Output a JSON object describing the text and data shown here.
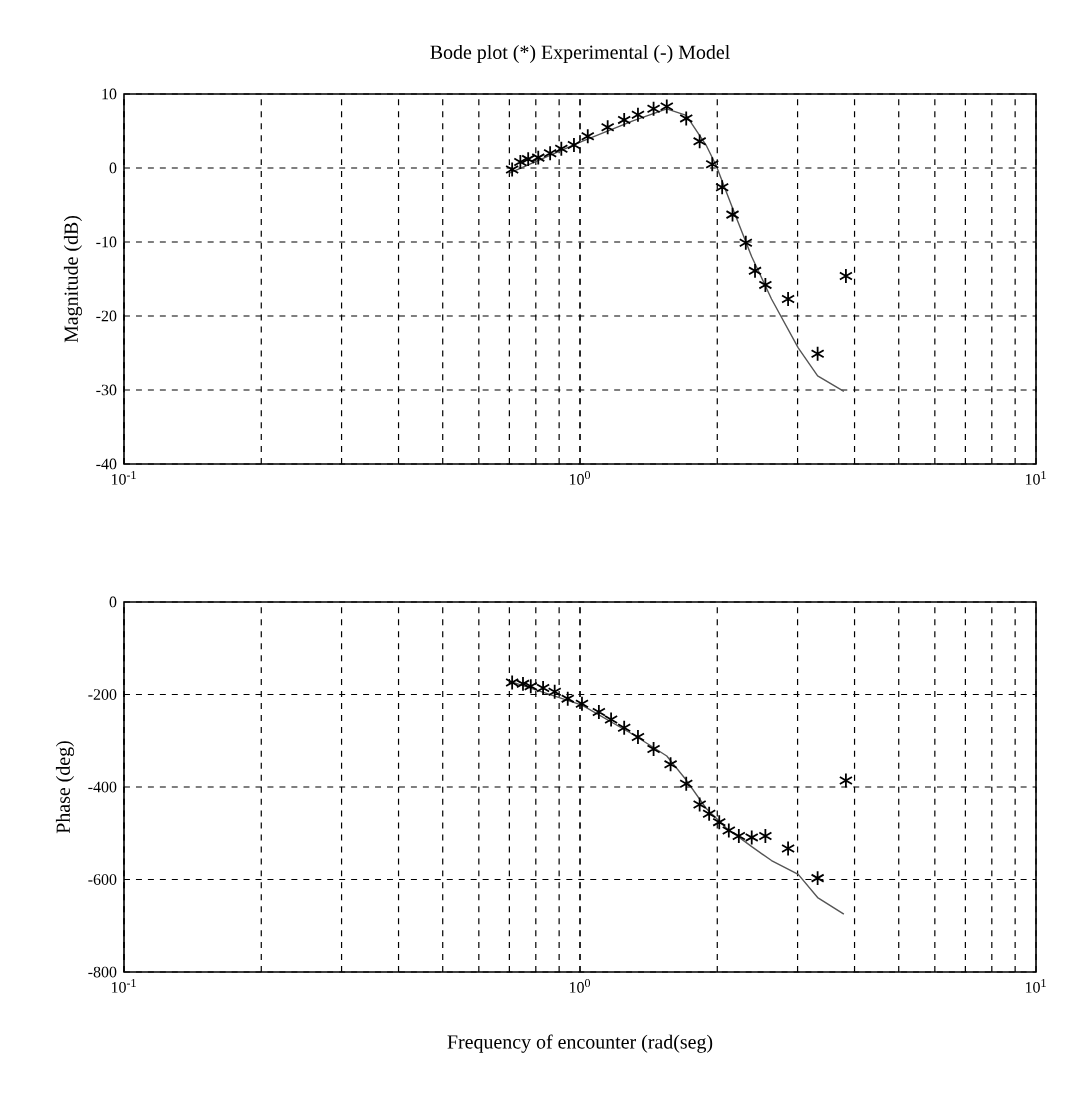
{
  "chart_data": [
    {
      "type": "scatter",
      "title": "Bode plot (*) Experimental (-) Model",
      "ylabel": "Magnitude (dB)",
      "log": "x",
      "grid": true,
      "marker": "cross",
      "xlim": [
        0.1,
        10
      ],
      "xticks": [
        {
          "value": 0.1,
          "label": "10$^{-1}$"
        },
        {
          "value": 1,
          "label": "10$^{0}$"
        },
        {
          "value": 10,
          "label": "10$^{1}$"
        }
      ],
      "ylim": [
        -40,
        10
      ],
      "yticks": [
        -40,
        -30,
        -20,
        -10,
        0,
        10
      ],
      "series": [
        {
          "color": "#000000",
          "x": [
            0.71,
            0.74,
            0.77,
            0.81,
            0.86,
            0.91,
            0.97,
            1.04,
            1.15,
            1.25,
            1.34,
            1.45,
            1.55,
            1.71,
            1.83,
            1.95,
            2.05,
            2.16,
            2.31,
            2.42,
            2.55,
            2.86,
            3.32,
            3.83
          ],
          "values": [
            -0.2,
            0.8,
            1.2,
            1.4,
            2.0,
            2.6,
            3.1,
            4.3,
            5.5,
            6.5,
            7.2,
            8.0,
            8.3,
            6.7,
            3.6,
            0.5,
            -2.6,
            -6.3,
            -10.1,
            -13.9,
            -15.8,
            -17.7,
            -25.1,
            -14.6
          ]
        },
        {
          "type": "line",
          "marker": "none",
          "color": "#555555",
          "x": [
            0.7,
            1.01,
            1.31,
            1.55,
            1.71,
            1.89,
            1.99,
            2.16,
            2.38,
            2.63,
            3.01,
            3.32,
            3.79
          ],
          "values": [
            -0.7,
            3.6,
            6.4,
            8.0,
            7.1,
            3.1,
            0.3,
            -5.4,
            -12.0,
            -17.7,
            -24.3,
            -28.1,
            -30.2
          ]
        }
      ]
    },
    {
      "type": "scatter",
      "xlabel": "Frequency of encounter (rad(seg)",
      "ylabel": "Phase (deg)",
      "log": "x",
      "grid": true,
      "marker": "cross",
      "xlim": [
        0.1,
        10
      ],
      "xticks": [
        {
          "value": 0.1,
          "label": "10$^{-1}$"
        },
        {
          "value": 1,
          "label": "10$^{0}$"
        },
        {
          "value": 10,
          "label": "10$^{1}$"
        }
      ],
      "ylim": [
        -800,
        0
      ],
      "yticks": [
        -800,
        -600,
        -400,
        -200,
        0
      ],
      "series": [
        {
          "color": "#000000",
          "x": [
            0.71,
            0.75,
            0.78,
            0.83,
            0.88,
            0.94,
            1.01,
            1.1,
            1.17,
            1.25,
            1.34,
            1.45,
            1.58,
            1.71,
            1.83,
            1.92,
            2.02,
            2.12,
            2.23,
            2.38,
            2.55,
            2.86,
            3.32,
            3.83
          ],
          "values": [
            -174,
            -177,
            -182,
            -186,
            -194,
            -209,
            -220,
            -238,
            -254,
            -272,
            -292,
            -318,
            -351,
            -393,
            -438,
            -458,
            -476,
            -494,
            -506,
            -509,
            -506,
            -533,
            -597,
            -386
          ]
        },
        {
          "type": "line",
          "marker": "none",
          "color": "#555555",
          "x": [
            0.7,
            1.01,
            1.31,
            1.55,
            1.71,
            1.89,
            2.09,
            2.38,
            2.63,
            3.01,
            3.32,
            3.79
          ],
          "values": [
            -171,
            -223,
            -287,
            -333,
            -385,
            -446,
            -488,
            -529,
            -559,
            -589,
            -639,
            -675
          ]
        }
      ]
    }
  ]
}
